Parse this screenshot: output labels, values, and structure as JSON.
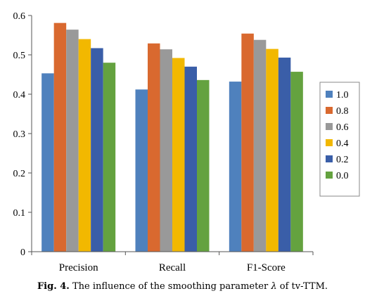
{
  "chart_data": {
    "type": "bar",
    "categories": [
      "Precision",
      "Recall",
      "F1-Score"
    ],
    "series": [
      {
        "name": "1.0",
        "color": "#4f81bd",
        "values": [
          0.453,
          0.412,
          0.432
        ]
      },
      {
        "name": "0.8",
        "color": "#d9692f",
        "values": [
          0.581,
          0.529,
          0.554
        ]
      },
      {
        "name": "0.6",
        "color": "#999999",
        "values": [
          0.564,
          0.514,
          0.538
        ]
      },
      {
        "name": "0.4",
        "color": "#f2b800",
        "values": [
          0.54,
          0.492,
          0.515
        ]
      },
      {
        "name": "0.2",
        "color": "#3a5ea8",
        "values": [
          0.517,
          0.47,
          0.493
        ]
      },
      {
        "name": "0.0",
        "color": "#64a23f",
        "values": [
          0.48,
          0.436,
          0.457
        ]
      }
    ],
    "ylim": [
      0,
      0.6
    ],
    "yticks": [
      "0",
      "0.1",
      "0.2",
      "0.3",
      "0.4",
      "0.5",
      "0.6"
    ],
    "grid": false,
    "legend_position": "right"
  },
  "caption": {
    "fig_label": "Fig. 4.",
    "text_before": "The influence of the smoothing parameter",
    "symbol": "λ",
    "text_after": "of tv-TTM."
  }
}
